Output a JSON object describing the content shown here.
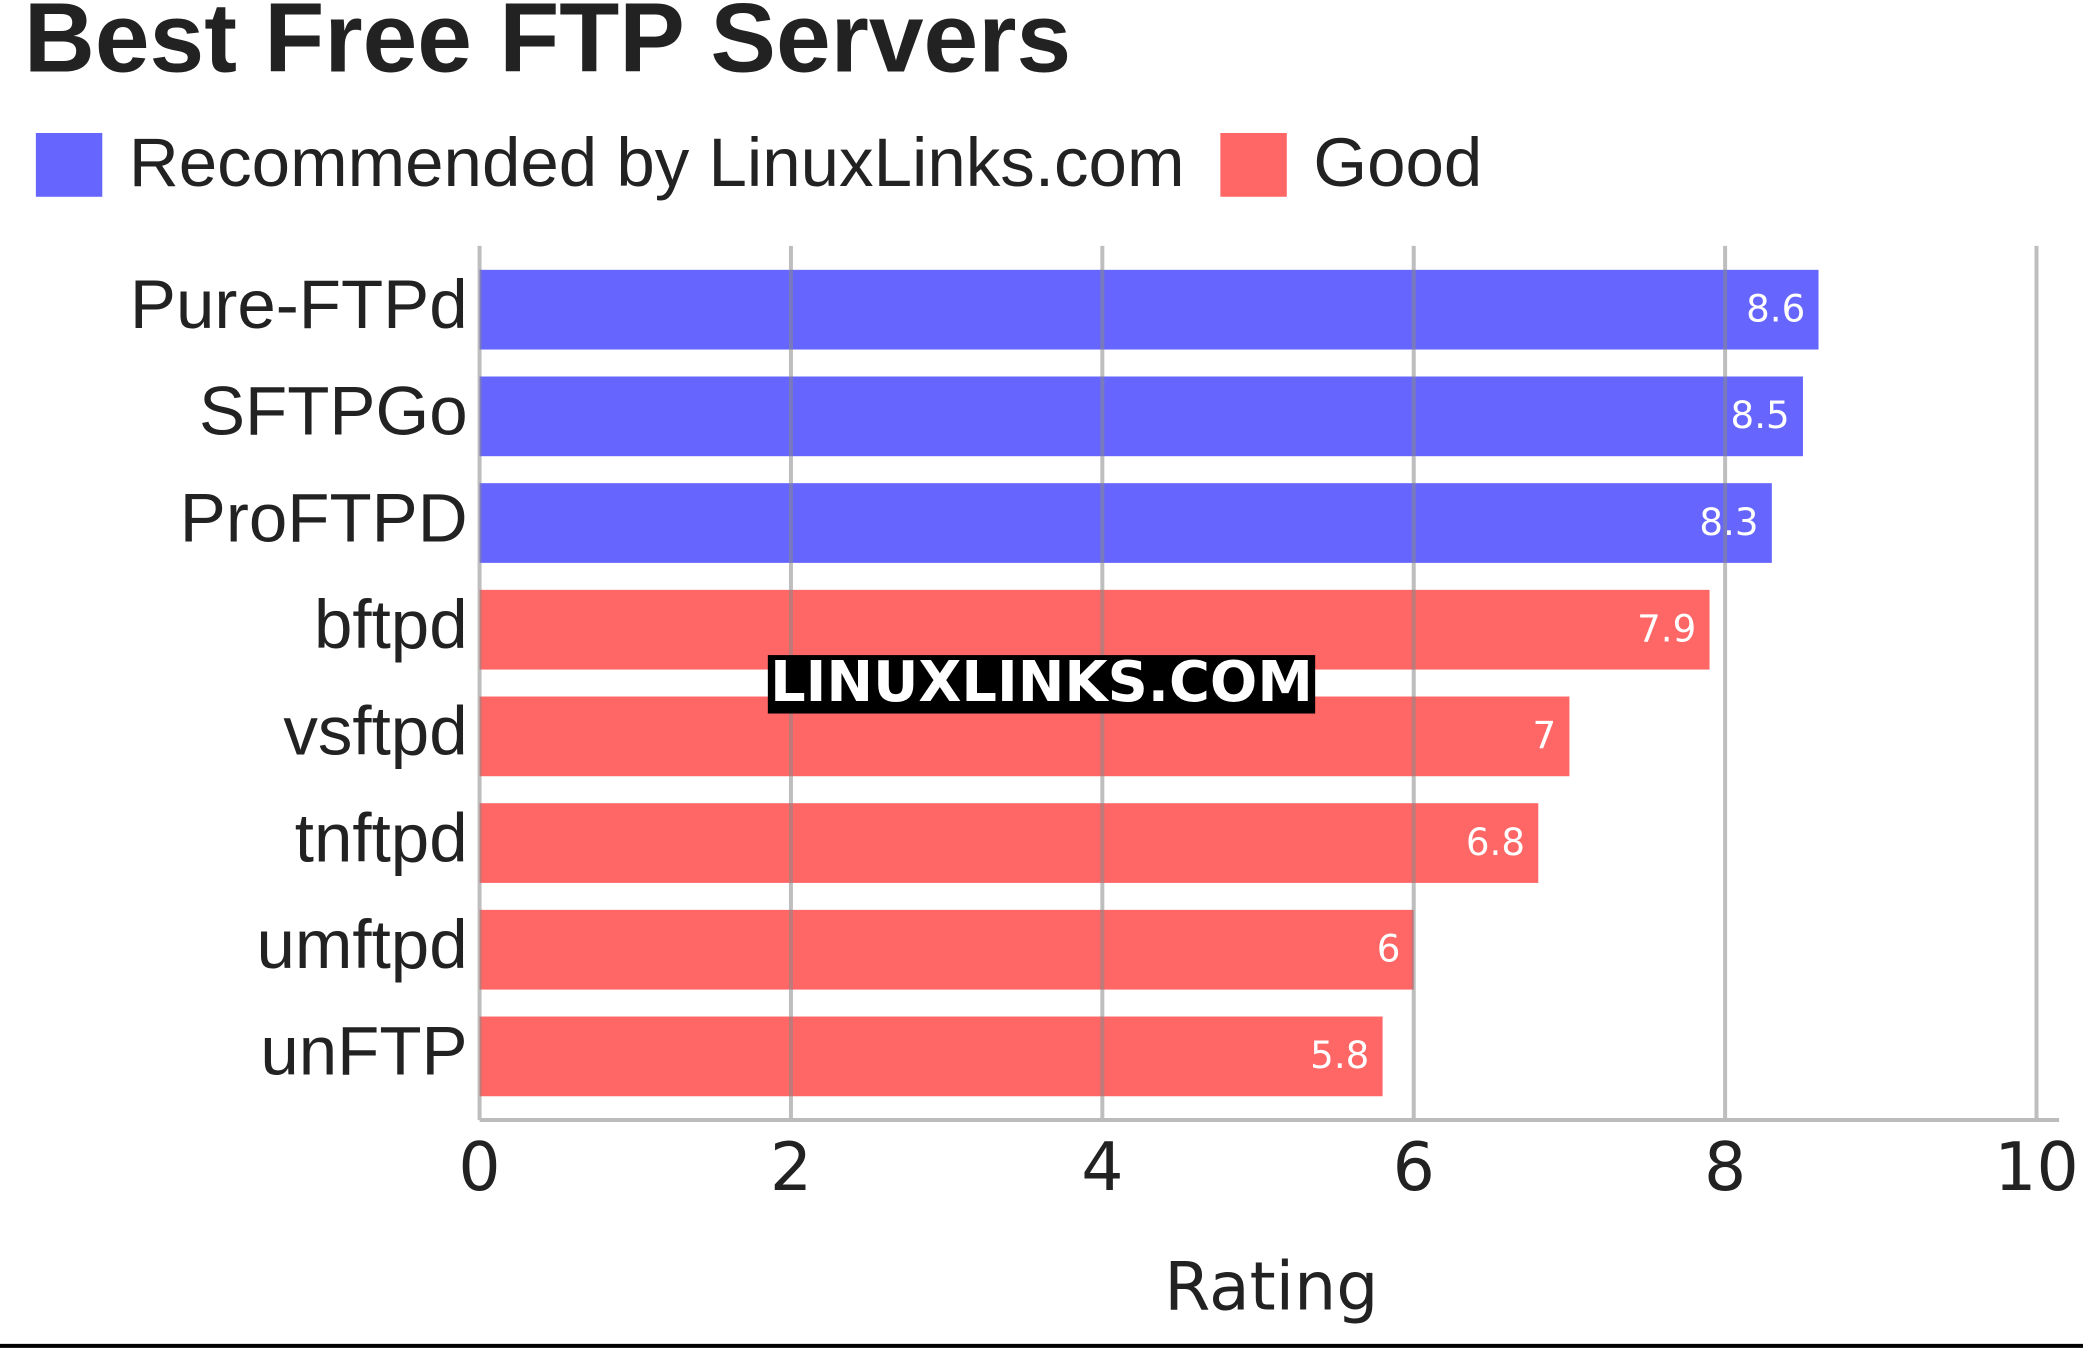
{
  "chart_data": {
    "type": "hbar",
    "title": "Best Free FTP Servers",
    "categories": [
      "Pure-FTPd",
      "SFTPGo",
      "ProFTPD",
      "bftpd",
      "vsftpd",
      "tnftpd",
      "umftpd",
      "unFTP"
    ],
    "series": [
      {
        "name": "Recommended by LinuxLinks.com",
        "color": "#6666ff",
        "values": [
          8.6,
          8.5,
          8.3,
          null,
          null,
          null,
          null,
          null
        ]
      },
      {
        "name": "Good",
        "color": "#ff6666",
        "values": [
          null,
          null,
          null,
          7.9,
          7,
          6.8,
          6,
          5.8
        ]
      }
    ],
    "xlabel": "Rating",
    "xlim": [
      0,
      10
    ],
    "xticks": [
      0,
      2,
      4,
      6,
      8,
      10
    ],
    "grid": true,
    "watermark": "LINUXLINKS.COM"
  }
}
